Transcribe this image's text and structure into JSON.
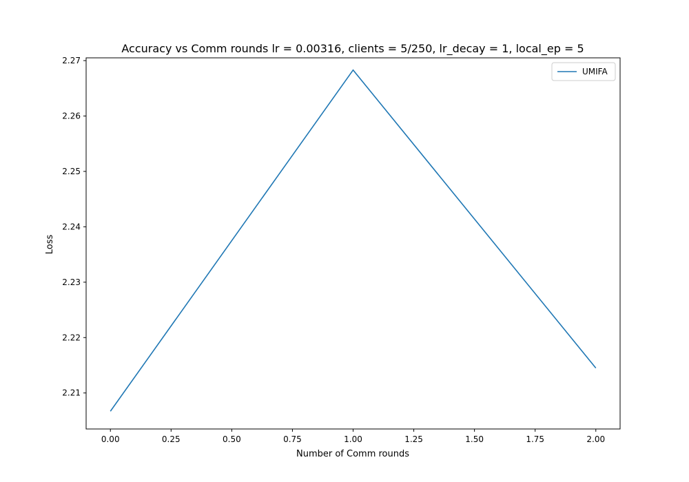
{
  "chart_data": {
    "type": "line",
    "title": "Accuracy vs Comm rounds lr = 0.00316, clients = 5/250, lr_decay = 1, local_ep = 5",
    "xlabel": "Number of Comm rounds",
    "ylabel": "Loss",
    "xlim": [
      -0.1,
      2.1
    ],
    "ylim": [
      2.2035,
      2.2705
    ],
    "xticks": [
      0.0,
      0.25,
      0.5,
      0.75,
      1.0,
      1.25,
      1.5,
      1.75,
      2.0
    ],
    "xtick_labels": [
      "0.00",
      "0.25",
      "0.50",
      "0.75",
      "1.00",
      "1.25",
      "1.50",
      "1.75",
      "2.00"
    ],
    "yticks": [
      2.21,
      2.22,
      2.23,
      2.24,
      2.25,
      2.26,
      2.27
    ],
    "ytick_labels": [
      "2.21",
      "2.22",
      "2.23",
      "2.24",
      "2.25",
      "2.26",
      "2.27"
    ],
    "grid": false,
    "legend_position": "top-right",
    "series": [
      {
        "name": "UMIFA",
        "color": "#1f77b4",
        "x": [
          0,
          1,
          2
        ],
        "y": [
          2.2067,
          2.2683,
          2.2145
        ]
      }
    ]
  }
}
